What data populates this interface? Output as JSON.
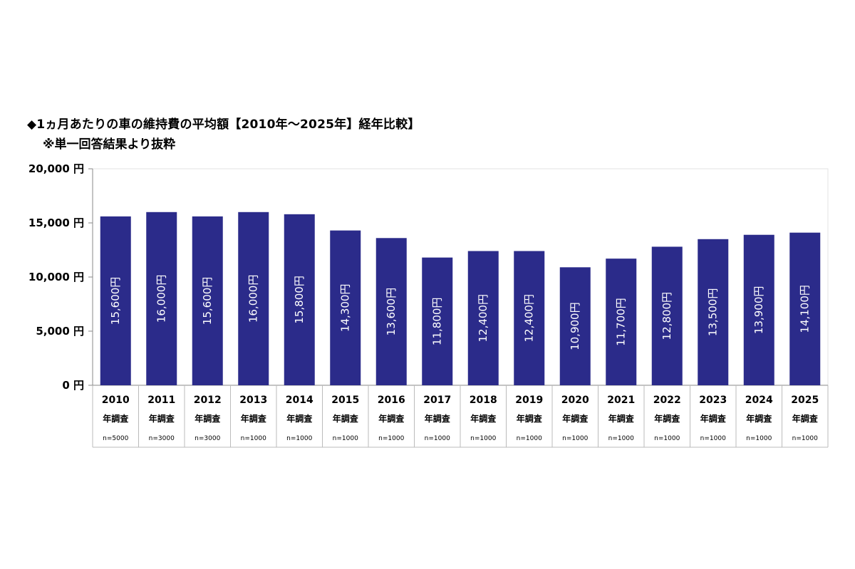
{
  "title": "◆1ヵ月あたりの車の維持費の平均額【2010年～2025年】経年比較】",
  "subtitle": "※単一回答結果より抜粋",
  "chart_data": {
    "type": "bar",
    "title": "◆1ヵ月あたりの車の維持費の平均額【2010年～2025年】経年比較】",
    "subtitle": "※単一回答結果より抜粋",
    "categories": [
      "2010",
      "2011",
      "2012",
      "2013",
      "2014",
      "2015",
      "2016",
      "2017",
      "2018",
      "2019",
      "2020",
      "2021",
      "2022",
      "2023",
      "2024",
      "2025"
    ],
    "category_sublabel": "年調査",
    "sample_sizes": [
      "n=5000",
      "n=3000",
      "n=3000",
      "n=1000",
      "n=1000",
      "n=1000",
      "n=1000",
      "n=1000",
      "n=1000",
      "n=1000",
      "n=1000",
      "n=1000",
      "n=1000",
      "n=1000",
      "n=1000",
      "n=1000"
    ],
    "values": [
      15600,
      16000,
      15600,
      16000,
      15800,
      14300,
      13600,
      11800,
      12400,
      12400,
      10900,
      11700,
      12800,
      13500,
      13900,
      14100
    ],
    "value_labels": [
      "15,600円",
      "16,000円",
      "15,600円",
      "16,000円",
      "15,800円",
      "14,300円",
      "13,600円",
      "11,800円",
      "12,400円",
      "12,400円",
      "10,900円",
      "11,700円",
      "12,800円",
      "13,500円",
      "13,900円",
      "14,100円"
    ],
    "y_ticks": [
      0,
      5000,
      10000,
      15000,
      20000
    ],
    "y_tick_labels": [
      "0 円",
      "5,000 円",
      "10,000 円",
      "15,000 円",
      "20,000 円"
    ],
    "ylim": [
      0,
      20000
    ],
    "grid": false,
    "bar_color": "#2b2b8a",
    "xlabel": "",
    "ylabel": ""
  }
}
